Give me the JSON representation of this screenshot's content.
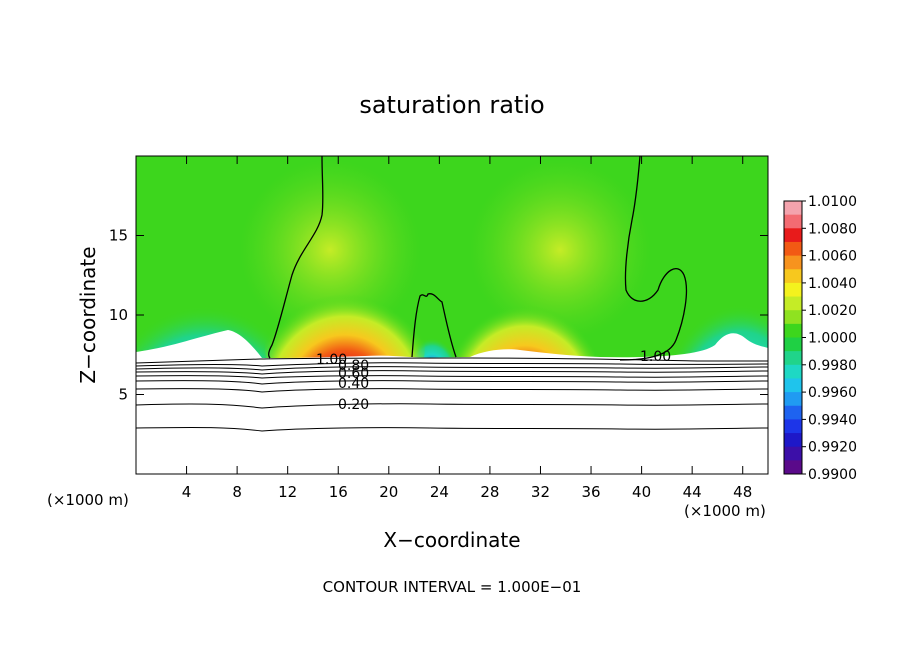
{
  "chart_data": {
    "type": "heatmap",
    "title": "saturation ratio",
    "xlabel": "X−coordinate",
    "ylabel": "Z−coordinate",
    "x_unit_left": "(×1000 m)",
    "x_unit_right": "(×1000 m)",
    "footer": "CONTOUR INTERVAL = 1.000E−01",
    "xlim": [
      0,
      50
    ],
    "ylim": [
      0,
      20
    ],
    "xticks": [
      4,
      8,
      12,
      16,
      20,
      24,
      28,
      32,
      36,
      40,
      44,
      48
    ],
    "yticks": [
      5,
      10,
      15
    ],
    "colorbar": {
      "min": 0.99,
      "max": 1.01,
      "labels": [
        "1.0100",
        "1.0080",
        "1.0060",
        "1.0040",
        "1.0020",
        "1.0000",
        "0.9980",
        "0.9960",
        "0.9940",
        "0.9920",
        "0.9900"
      ],
      "colors": [
        "#f4a3ad",
        "#f36b72",
        "#e81b1b",
        "#f25a14",
        "#f7931e",
        "#f7c81e",
        "#f4f21e",
        "#c5ec26",
        "#8fe220",
        "#3dd61d",
        "#1fd044",
        "#20d48a",
        "#1ed8c4",
        "#1fc4ec",
        "#209bf2",
        "#1e63f0",
        "#1d35e8",
        "#1e18c8",
        "#3c0fa8",
        "#5a0a8a"
      ]
    },
    "contour_labels": [
      {
        "text": "1.00",
        "x": 18.3,
        "z": 6.9
      },
      {
        "text": "0.80",
        "x": 19.3,
        "z": 6.6
      },
      {
        "text": "0.60",
        "x": 19.3,
        "z": 6.2
      },
      {
        "text": "0.40",
        "x": 19.3,
        "z": 5.6
      },
      {
        "text": "0.20",
        "x": 19.2,
        "z": 4.4
      },
      {
        "text": "1.00",
        "x": 42.3,
        "z": 7.5
      }
    ]
  }
}
